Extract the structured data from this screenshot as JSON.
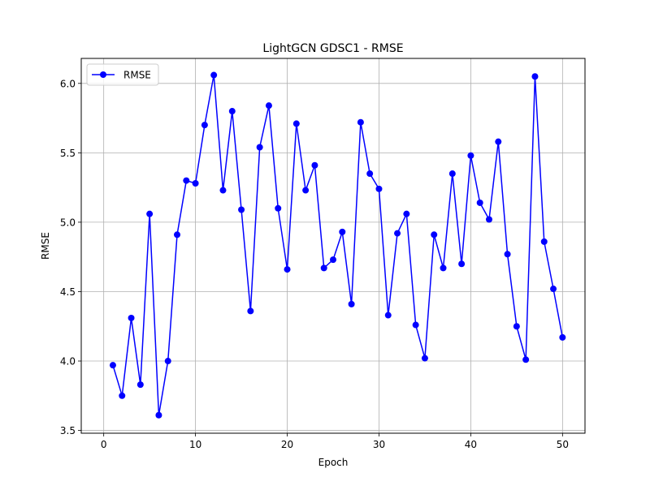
{
  "chart_data": {
    "type": "line",
    "title": "LightGCN GDSC1 - RMSE",
    "xlabel": "Epoch",
    "ylabel": "RMSE",
    "xlim": [
      -2.45,
      52.45
    ],
    "ylim": [
      3.48,
      6.18
    ],
    "xticks": [
      0,
      10,
      20,
      30,
      40,
      50
    ],
    "yticks": [
      3.5,
      4.0,
      4.5,
      5.0,
      5.5,
      6.0
    ],
    "xtick_labels": [
      "0",
      "10",
      "20",
      "30",
      "40",
      "50"
    ],
    "ytick_labels": [
      "3.5",
      "4.0",
      "4.5",
      "5.0",
      "5.5",
      "6.0"
    ],
    "grid": true,
    "legend_position": "top-left",
    "series": [
      {
        "name": "RMSE",
        "color": "#0000ff",
        "marker": "circle",
        "x": [
          1,
          2,
          3,
          4,
          5,
          6,
          7,
          8,
          9,
          10,
          11,
          12,
          13,
          14,
          15,
          16,
          17,
          18,
          19,
          20,
          21,
          22,
          23,
          24,
          25,
          26,
          27,
          28,
          29,
          30,
          31,
          32,
          33,
          34,
          35,
          36,
          37,
          38,
          39,
          40,
          41,
          42,
          43,
          44,
          45,
          46,
          47,
          48,
          49,
          50
        ],
        "values": [
          3.97,
          3.75,
          4.31,
          3.83,
          5.06,
          3.61,
          4.0,
          4.91,
          5.3,
          5.28,
          5.7,
          6.06,
          5.23,
          5.8,
          5.09,
          4.36,
          5.54,
          5.84,
          5.1,
          4.66,
          5.71,
          5.23,
          5.41,
          4.67,
          4.73,
          4.93,
          4.41,
          5.72,
          5.35,
          5.24,
          4.33,
          4.92,
          5.06,
          4.26,
          4.02,
          4.91,
          4.67,
          5.35,
          4.7,
          5.48,
          5.14,
          5.02,
          5.58,
          4.77,
          4.25,
          4.01,
          6.05,
          4.86,
          4.52,
          4.17
        ]
      }
    ]
  }
}
